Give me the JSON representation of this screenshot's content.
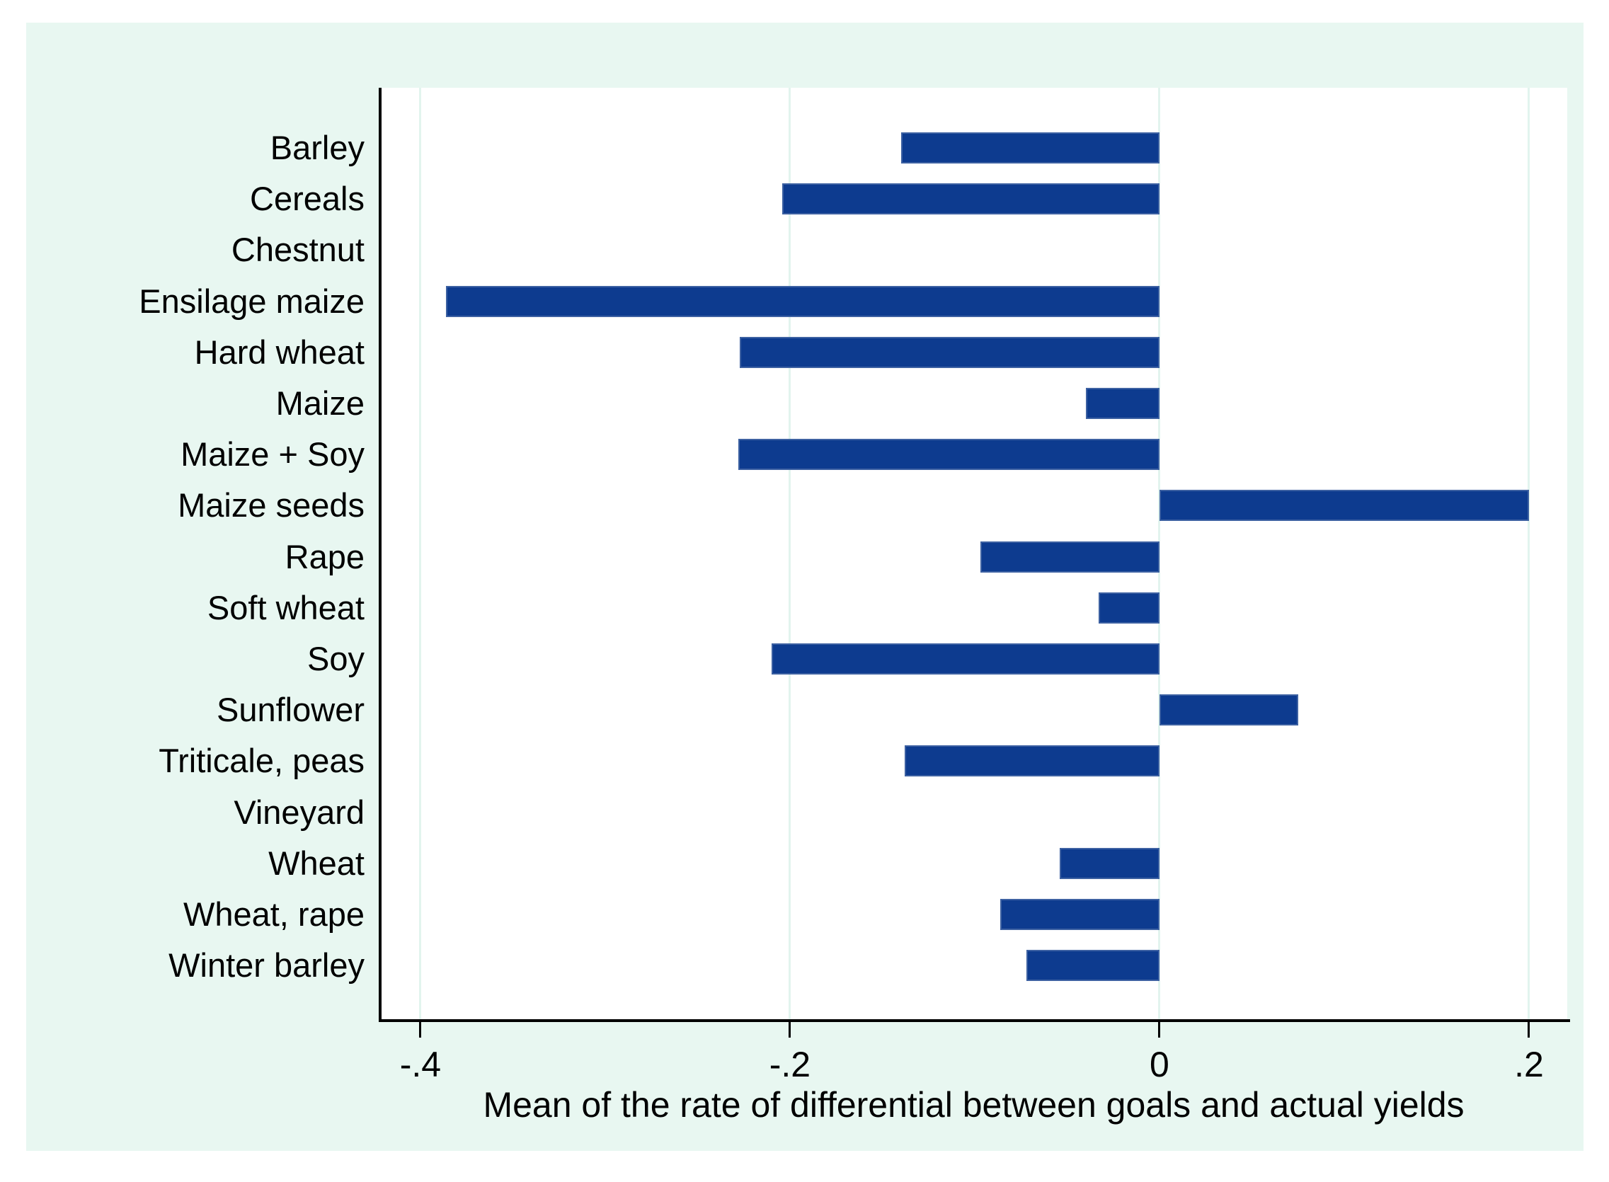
{
  "figure": {
    "page_background": "#ffffff",
    "panel_background": "#e8f7f1",
    "plot_background": "#ffffff",
    "grid_color": "#e2f4ee",
    "axis_color": "#000000",
    "bar_fill": "#0d3b8f",
    "bar_outline": "#3d61a2",
    "text_color": "#000000"
  },
  "chart_data": {
    "type": "bar",
    "orientation": "horizontal",
    "title": "",
    "xlabel": "Mean of the rate of differential between goals and actual yields",
    "ylabel": "",
    "xlim": [
      -0.4218,
      0.2207
    ],
    "grid": "vertical-only",
    "legend": "none",
    "x_ticks": [
      {
        "value": -0.4,
        "label": "-.4"
      },
      {
        "value": -0.2,
        "label": "-.2"
      },
      {
        "value": 0,
        "label": "0"
      },
      {
        "value": 0.2,
        "label": ".2"
      }
    ],
    "categories": [
      "Barley",
      "Cereals",
      "Chestnut",
      "Ensilage maize",
      "Hard wheat",
      "Maize",
      "Maize + Soy",
      "Maize seeds",
      "Rape",
      "Soft wheat",
      "Soy",
      "Sunflower",
      "Triticale, peas",
      "Vineyard",
      "Wheat",
      "Wheat, rape",
      "Winter barley"
    ],
    "values": [
      -0.14,
      -0.204,
      0,
      -0.386,
      -0.227,
      -0.04,
      -0.228,
      0.2,
      -0.097,
      -0.033,
      -0.21,
      0.075,
      -0.138,
      0,
      -0.054,
      -0.086,
      -0.072
    ]
  }
}
